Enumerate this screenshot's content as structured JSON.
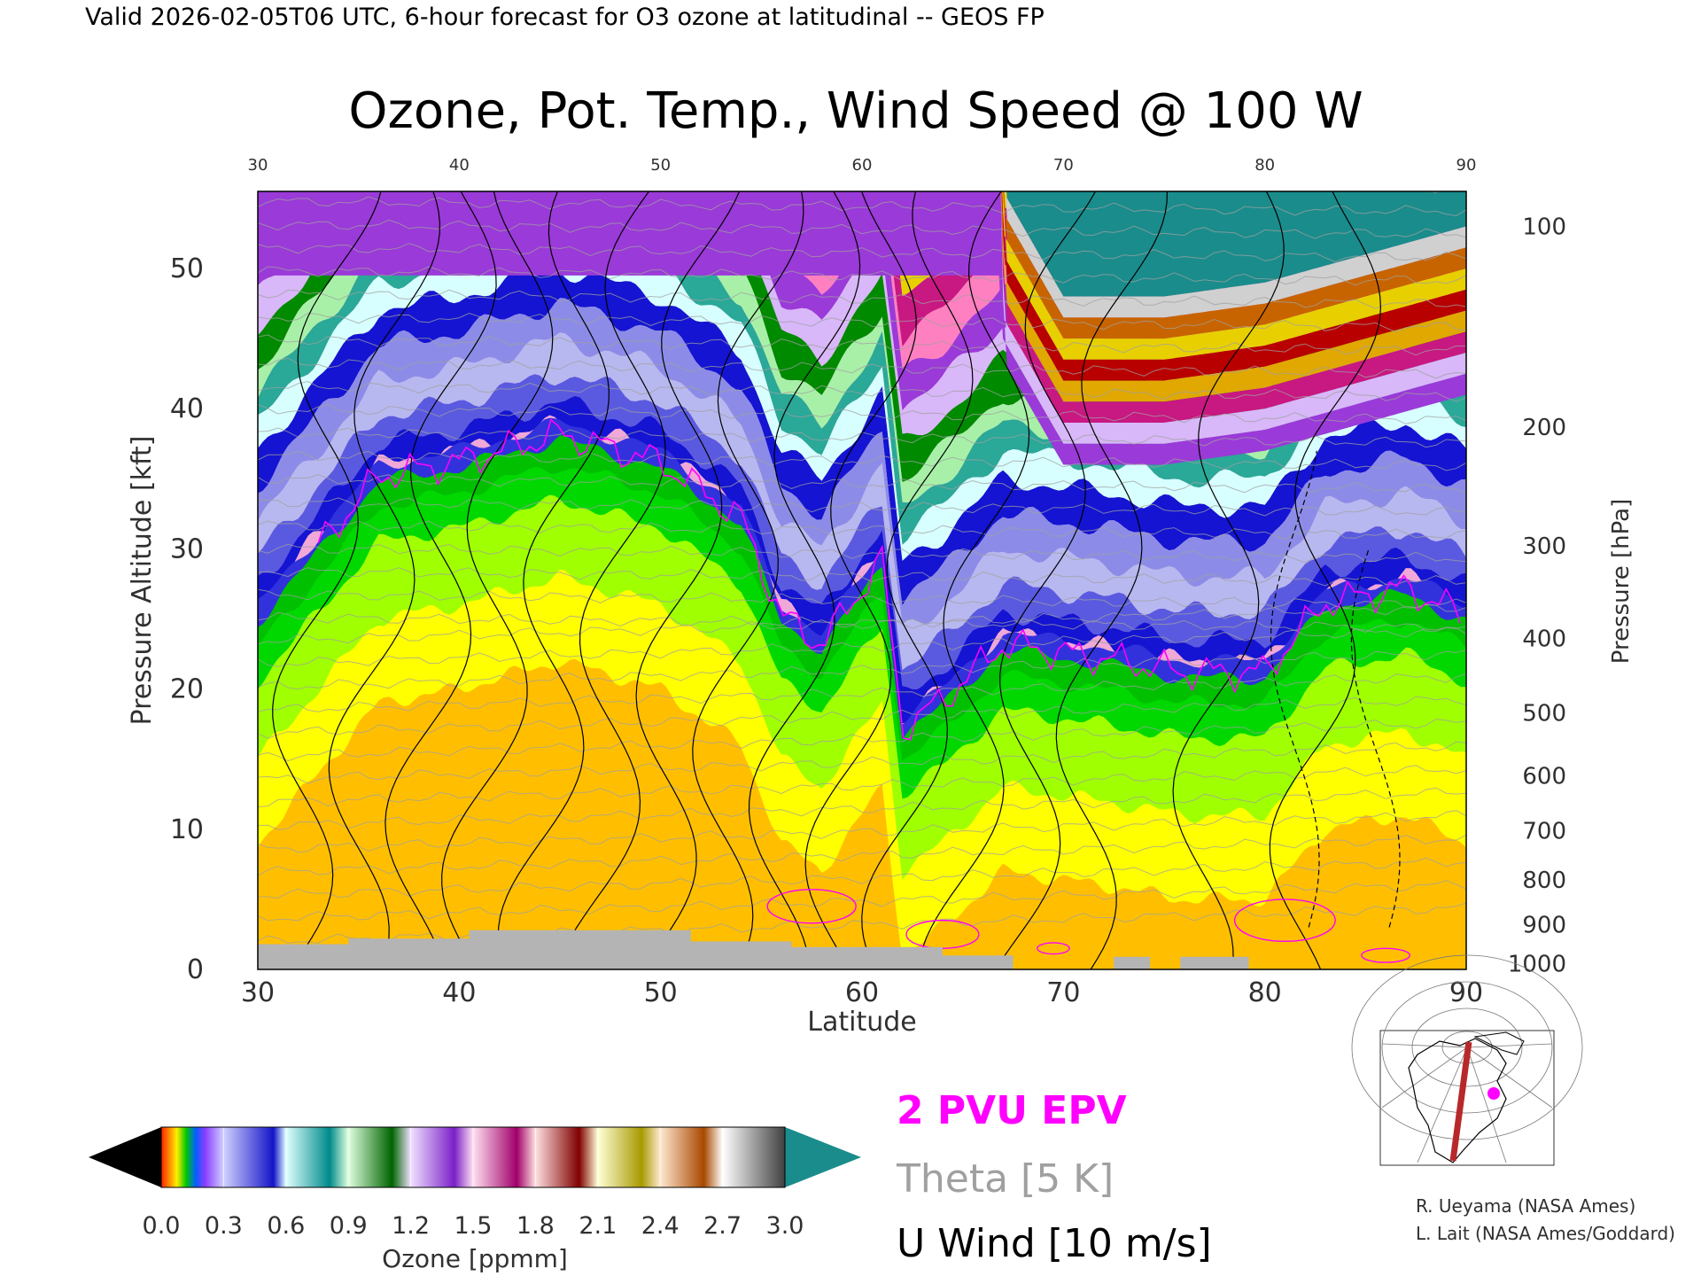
{
  "header": {
    "valid_line": "Valid 2026-02-05T06 UTC, 6-hour forecast for O3 ozone at latitudinal -- GEOS FP"
  },
  "chart_data": {
    "type": "heatmap",
    "title": "Ozone, Pot. Temp., Wind Speed @ 100 W",
    "xlabel": "Latitude",
    "ylabel_left": "Pressure Altitude [kft]",
    "ylabel_right": "Pressure [hPa]",
    "x_range": [
      30,
      90
    ],
    "y_range": [
      0,
      55.5
    ],
    "x_ticks": [
      30,
      40,
      50,
      60,
      70,
      80,
      90
    ],
    "x_tick_labels": [
      "30",
      "40",
      "50",
      "60",
      "70",
      "80",
      "90"
    ],
    "y_ticks": [
      0,
      10,
      20,
      30,
      40,
      50
    ],
    "y_tick_labels": [
      "0",
      "10",
      "20",
      "30",
      "40",
      "50"
    ],
    "pressure_ticks": [
      {
        "label": "100",
        "kft": 53.0
      },
      {
        "label": "200",
        "kft": 38.7
      },
      {
        "label": "300",
        "kft": 30.2
      },
      {
        "label": "400",
        "kft": 23.6
      },
      {
        "label": "500",
        "kft": 18.3
      },
      {
        "label": "600",
        "kft": 13.8
      },
      {
        "label": "700",
        "kft": 9.9
      },
      {
        "label": "800",
        "kft": 6.4
      },
      {
        "label": "900",
        "kft": 3.2
      },
      {
        "label": "1000",
        "kft": 0.4
      }
    ],
    "ozone_boundaries": {
      "tropopause_kft": [
        {
          "lat": 30,
          "kft": 26
        },
        {
          "lat": 33,
          "kft": 31
        },
        {
          "lat": 36,
          "kft": 36
        },
        {
          "lat": 40,
          "kft": 37
        },
        {
          "lat": 45,
          "kft": 39
        },
        {
          "lat": 50,
          "kft": 37
        },
        {
          "lat": 54,
          "kft": 33
        },
        {
          "lat": 56,
          "kft": 26
        },
        {
          "lat": 58,
          "kft": 24
        },
        {
          "lat": 61,
          "kft": 30
        },
        {
          "lat": 62,
          "kft": 18
        },
        {
          "lat": 64,
          "kft": 20
        },
        {
          "lat": 67,
          "kft": 24
        },
        {
          "lat": 72,
          "kft": 23
        },
        {
          "lat": 76,
          "kft": 22
        },
        {
          "lat": 80,
          "kft": 22
        },
        {
          "lat": 83,
          "kft": 27
        },
        {
          "lat": 87,
          "kft": 28
        },
        {
          "lat": 90,
          "kft": 26
        }
      ],
      "ozone_3ppmm_kft": [
        {
          "lat": 67,
          "kft": 55.5
        },
        {
          "lat": 68,
          "kft": 53
        },
        {
          "lat": 70,
          "kft": 48
        },
        {
          "lat": 75,
          "kft": 48
        },
        {
          "lat": 80,
          "kft": 49
        },
        {
          "lat": 85,
          "kft": 51
        },
        {
          "lat": 90,
          "kft": 53
        }
      ]
    },
    "colorbar": {
      "label": "Ozone [ppmm]",
      "min": 0.0,
      "max": 3.0,
      "tick_labels": [
        "0.0",
        "0.3",
        "0.6",
        "0.9",
        "1.2",
        "1.5",
        "1.8",
        "2.1",
        "2.4",
        "2.7",
        "3.0"
      ],
      "under_color": "#000000",
      "over_color": "#1a8c8c",
      "segments": [
        "#ff3a00",
        "#8a5cff",
        "#1e1ec8",
        "#2aa898",
        "#008a00",
        "#9a3ad8",
        "#c81882",
        "#b80000",
        "#d8c800",
        "#c86400",
        "#909090"
      ]
    },
    "legend": [
      {
        "label": "2 PVU EPV",
        "color": "#ff00ff"
      },
      {
        "label": "Theta [5 K]",
        "color": "#a0a0a0"
      },
      {
        "label": "U Wind [10 m/s]",
        "color": "#000000"
      }
    ],
    "colors": {
      "troposphere_orange": "#ffbf00",
      "troposphere_yellow": "#ffff00",
      "troposphere_lime": "#a0ff00",
      "troposphere_green": "#00d800",
      "low_strat_blue": "#1414d2",
      "mid_strat_lavender": "#b8b8f0",
      "terrain": "#b4b4b4"
    }
  },
  "credits": {
    "line1": "R. Ueyama (NASA Ames)",
    "line2": "L. Lait (NASA Ames/Goddard)"
  }
}
